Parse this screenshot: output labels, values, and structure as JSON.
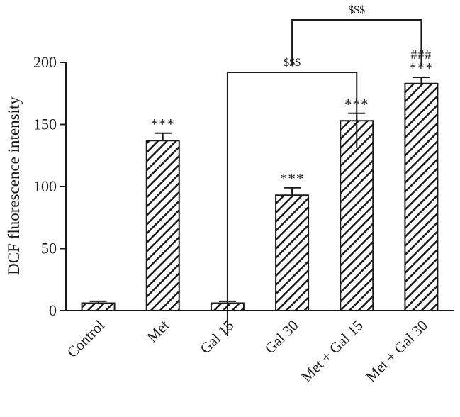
{
  "chart_data": {
    "type": "bar",
    "ylabel": "DCF fluorescence intensity",
    "ylim": [
      0,
      200
    ],
    "yticks": [
      "0",
      "50",
      "100",
      "150",
      "200"
    ],
    "categories": [
      "Control",
      "Met",
      "Gal 15",
      "Gal 30",
      "Met + Gal 15",
      "Met + Gal 30"
    ],
    "values": [
      6,
      137,
      6,
      93,
      153,
      183
    ],
    "error": [
      1.5,
      6,
      1.5,
      6,
      6,
      5
    ],
    "significance": [
      "",
      "***",
      "",
      "***",
      "***",
      "***"
    ],
    "significance_extra": [
      "",
      "",
      "",
      "",
      "",
      "###"
    ],
    "comparisons": [
      {
        "from": "Gal 15",
        "to": "Met + Gal 15",
        "label": "$$$"
      },
      {
        "from": "Gal 30",
        "to": "Met + Gal 30",
        "label": "$$$"
      }
    ],
    "bar_fill": "hatched diagonal",
    "colors": {
      "ink": "#1a1a1a",
      "background": "#ffffff"
    }
  }
}
